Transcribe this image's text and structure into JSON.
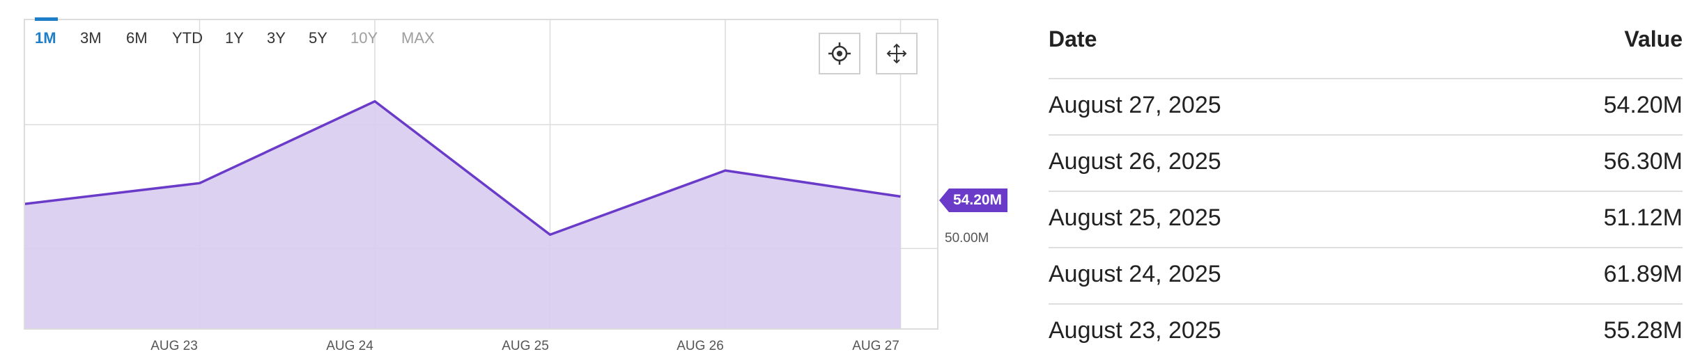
{
  "range_buttons": [
    {
      "label": "1M",
      "state": "active"
    },
    {
      "label": "3M",
      "state": "enabled"
    },
    {
      "label": "6M",
      "state": "enabled"
    },
    {
      "label": "YTD",
      "state": "enabled"
    },
    {
      "label": "1Y",
      "state": "enabled"
    },
    {
      "label": "3Y",
      "state": "enabled"
    },
    {
      "label": "5Y",
      "state": "enabled"
    },
    {
      "label": "10Y",
      "state": "disabled"
    },
    {
      "label": "MAX",
      "state": "disabled"
    }
  ],
  "tools": [
    {
      "icon": "crosshair-icon"
    },
    {
      "icon": "move-icon"
    }
  ],
  "chart_data": {
    "type": "area",
    "x_start": "2025-08-22",
    "x": [
      "2025-08-22",
      "2025-08-23",
      "2025-08-24",
      "2025-08-25",
      "2025-08-26",
      "2025-08-27"
    ],
    "values": [
      53.6,
      55.28,
      61.89,
      51.12,
      56.3,
      54.2
    ],
    "x_ticks": [
      "AUG 23",
      "AUG 24",
      "AUG 25",
      "AUG 26",
      "AUG 27"
    ],
    "y_tick_labels": [
      {
        "value": 50.0,
        "label": "50.00M"
      }
    ],
    "ylim": [
      43.5,
      68.5
    ],
    "last_value_label": "54.20M",
    "grid": true,
    "colors": {
      "line": "#6a3bc9",
      "fill": "#d9ccf0",
      "grid": "#dcdcdc",
      "badge": "#6a3bc9"
    }
  },
  "table": {
    "headers": {
      "date": "Date",
      "value": "Value"
    },
    "rows": [
      {
        "date": "August 27, 2025",
        "value": "54.20M"
      },
      {
        "date": "August 26, 2025",
        "value": "56.30M"
      },
      {
        "date": "August 25, 2025",
        "value": "51.12M"
      },
      {
        "date": "August 24, 2025",
        "value": "61.89M"
      },
      {
        "date": "August 23, 2025",
        "value": "55.28M"
      }
    ]
  }
}
